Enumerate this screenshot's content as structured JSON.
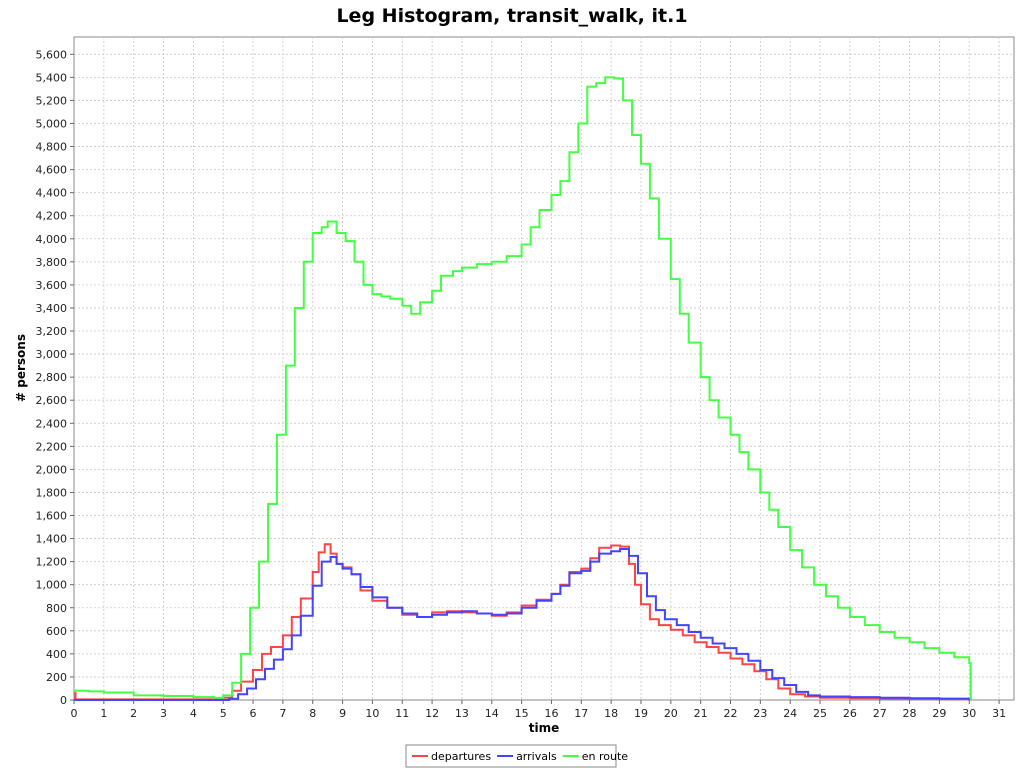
{
  "chart_data": {
    "type": "line",
    "step": true,
    "title": "Leg Histogram, transit_walk, it.1",
    "xlabel": "time",
    "ylabel": "# persons",
    "xlim": [
      0,
      31.5
    ],
    "ylim": [
      0,
      5750
    ],
    "x_ticks": [
      0,
      1,
      2,
      3,
      4,
      5,
      6,
      7,
      8,
      9,
      10,
      11,
      12,
      13,
      14,
      15,
      16,
      17,
      18,
      19,
      20,
      21,
      22,
      23,
      24,
      25,
      26,
      27,
      28,
      29,
      30,
      31
    ],
    "y_ticks": [
      0,
      200,
      400,
      600,
      800,
      1000,
      1200,
      1400,
      1600,
      1800,
      2000,
      2200,
      2400,
      2600,
      2800,
      3000,
      3200,
      3400,
      3600,
      3800,
      4000,
      4200,
      4400,
      4600,
      4800,
      5000,
      5200,
      5400,
      5600
    ],
    "y_tick_labels": [
      "0",
      "200",
      "400",
      "600",
      "800",
      "1,000",
      "1,200",
      "1,400",
      "1,600",
      "1,800",
      "2,000",
      "2,200",
      "2,400",
      "2,600",
      "2,800",
      "3,000",
      "3,200",
      "3,400",
      "3,600",
      "3,800",
      "4,000",
      "4,200",
      "4,400",
      "4,600",
      "4,800",
      "5,000",
      "5,200",
      "5,400",
      "5,600"
    ],
    "grid": true,
    "legend_position": "bottom",
    "series": [
      {
        "name": "departures",
        "color": "#ff4444",
        "points": [
          [
            0,
            60
          ],
          [
            0.05,
            5
          ],
          [
            1,
            5
          ],
          [
            2,
            5
          ],
          [
            3,
            5
          ],
          [
            4,
            5
          ],
          [
            4.8,
            10
          ],
          [
            5,
            20
          ],
          [
            5.3,
            80
          ],
          [
            5.6,
            160
          ],
          [
            6,
            260
          ],
          [
            6.3,
            400
          ],
          [
            6.6,
            460
          ],
          [
            7,
            560
          ],
          [
            7.3,
            720
          ],
          [
            7.6,
            880
          ],
          [
            8,
            1110
          ],
          [
            8.2,
            1280
          ],
          [
            8.4,
            1350
          ],
          [
            8.6,
            1270
          ],
          [
            8.8,
            1180
          ],
          [
            9,
            1150
          ],
          [
            9.3,
            1090
          ],
          [
            9.6,
            950
          ],
          [
            10,
            860
          ],
          [
            10.5,
            800
          ],
          [
            11,
            740
          ],
          [
            11.5,
            720
          ],
          [
            12,
            760
          ],
          [
            12.5,
            770
          ],
          [
            13,
            760
          ],
          [
            13.5,
            750
          ],
          [
            14,
            730
          ],
          [
            14.5,
            760
          ],
          [
            15,
            820
          ],
          [
            15.5,
            870
          ],
          [
            16,
            920
          ],
          [
            16.3,
            1000
          ],
          [
            16.6,
            1110
          ],
          [
            17,
            1140
          ],
          [
            17.3,
            1230
          ],
          [
            17.6,
            1320
          ],
          [
            18,
            1340
          ],
          [
            18.3,
            1330
          ],
          [
            18.6,
            1180
          ],
          [
            18.8,
            1000
          ],
          [
            19,
            830
          ],
          [
            19.3,
            700
          ],
          [
            19.6,
            650
          ],
          [
            20,
            610
          ],
          [
            20.4,
            560
          ],
          [
            20.8,
            500
          ],
          [
            21.2,
            460
          ],
          [
            21.6,
            410
          ],
          [
            22,
            360
          ],
          [
            22.4,
            310
          ],
          [
            22.8,
            250
          ],
          [
            23.2,
            180
          ],
          [
            23.6,
            100
          ],
          [
            24,
            50
          ],
          [
            24.5,
            30
          ],
          [
            25,
            20
          ],
          [
            26,
            15
          ],
          [
            27,
            12
          ],
          [
            28,
            10
          ],
          [
            29,
            8
          ],
          [
            30,
            5
          ],
          [
            30.05,
            0
          ]
        ]
      },
      {
        "name": "arrivals",
        "color": "#4444ff",
        "points": [
          [
            0,
            0
          ],
          [
            4.9,
            0
          ],
          [
            5.2,
            10
          ],
          [
            5.5,
            50
          ],
          [
            5.8,
            100
          ],
          [
            6.1,
            180
          ],
          [
            6.4,
            270
          ],
          [
            6.7,
            350
          ],
          [
            7,
            440
          ],
          [
            7.3,
            560
          ],
          [
            7.6,
            730
          ],
          [
            8,
            990
          ],
          [
            8.3,
            1200
          ],
          [
            8.6,
            1240
          ],
          [
            8.8,
            1180
          ],
          [
            9,
            1140
          ],
          [
            9.3,
            1090
          ],
          [
            9.6,
            980
          ],
          [
            10,
            890
          ],
          [
            10.5,
            800
          ],
          [
            11,
            750
          ],
          [
            11.5,
            720
          ],
          [
            12,
            740
          ],
          [
            12.5,
            760
          ],
          [
            13,
            770
          ],
          [
            13.5,
            750
          ],
          [
            14,
            740
          ],
          [
            14.5,
            750
          ],
          [
            15,
            800
          ],
          [
            15.5,
            860
          ],
          [
            16,
            920
          ],
          [
            16.3,
            990
          ],
          [
            16.6,
            1100
          ],
          [
            17,
            1120
          ],
          [
            17.3,
            1200
          ],
          [
            17.6,
            1270
          ],
          [
            18,
            1290
          ],
          [
            18.3,
            1310
          ],
          [
            18.6,
            1250
          ],
          [
            18.9,
            1100
          ],
          [
            19.2,
            900
          ],
          [
            19.5,
            780
          ],
          [
            19.8,
            700
          ],
          [
            20.2,
            650
          ],
          [
            20.6,
            590
          ],
          [
            21,
            540
          ],
          [
            21.4,
            490
          ],
          [
            21.8,
            450
          ],
          [
            22.2,
            400
          ],
          [
            22.6,
            340
          ],
          [
            23,
            260
          ],
          [
            23.4,
            190
          ],
          [
            23.8,
            130
          ],
          [
            24.2,
            70
          ],
          [
            24.6,
            40
          ],
          [
            25,
            30
          ],
          [
            26,
            25
          ],
          [
            27,
            20
          ],
          [
            28,
            15
          ],
          [
            29,
            12
          ],
          [
            30,
            5
          ],
          [
            30.05,
            0
          ]
        ]
      },
      {
        "name": "en route",
        "color": "#44ff44",
        "points": [
          [
            0,
            80
          ],
          [
            0.5,
            75
          ],
          [
            1,
            65
          ],
          [
            2,
            40
          ],
          [
            3,
            35
          ],
          [
            4,
            25
          ],
          [
            4.7,
            18
          ],
          [
            5,
            40
          ],
          [
            5.3,
            150
          ],
          [
            5.6,
            400
          ],
          [
            5.9,
            800
          ],
          [
            6.2,
            1200
          ],
          [
            6.5,
            1700
          ],
          [
            6.8,
            2300
          ],
          [
            7.1,
            2900
          ],
          [
            7.4,
            3400
          ],
          [
            7.7,
            3800
          ],
          [
            8,
            4050
          ],
          [
            8.3,
            4100
          ],
          [
            8.5,
            4150
          ],
          [
            8.8,
            4050
          ],
          [
            9.1,
            3980
          ],
          [
            9.4,
            3800
          ],
          [
            9.7,
            3600
          ],
          [
            10,
            3520
          ],
          [
            10.3,
            3500
          ],
          [
            10.6,
            3480
          ],
          [
            11,
            3420
          ],
          [
            11.3,
            3350
          ],
          [
            11.6,
            3450
          ],
          [
            12,
            3550
          ],
          [
            12.3,
            3680
          ],
          [
            12.7,
            3720
          ],
          [
            13,
            3750
          ],
          [
            13.5,
            3780
          ],
          [
            14,
            3800
          ],
          [
            14.5,
            3850
          ],
          [
            15,
            3950
          ],
          [
            15.3,
            4100
          ],
          [
            15.6,
            4250
          ],
          [
            16,
            4380
          ],
          [
            16.3,
            4500
          ],
          [
            16.6,
            4750
          ],
          [
            16.9,
            5000
          ],
          [
            17.2,
            5320
          ],
          [
            17.5,
            5350
          ],
          [
            17.8,
            5400
          ],
          [
            18.1,
            5390
          ],
          [
            18.4,
            5200
          ],
          [
            18.7,
            4900
          ],
          [
            19,
            4650
          ],
          [
            19.3,
            4350
          ],
          [
            19.6,
            4000
          ],
          [
            20,
            3650
          ],
          [
            20.3,
            3350
          ],
          [
            20.6,
            3100
          ],
          [
            21,
            2800
          ],
          [
            21.3,
            2600
          ],
          [
            21.6,
            2450
          ],
          [
            22,
            2300
          ],
          [
            22.3,
            2150
          ],
          [
            22.6,
            2000
          ],
          [
            23,
            1800
          ],
          [
            23.3,
            1650
          ],
          [
            23.6,
            1500
          ],
          [
            24,
            1300
          ],
          [
            24.4,
            1150
          ],
          [
            24.8,
            1000
          ],
          [
            25.2,
            900
          ],
          [
            25.6,
            800
          ],
          [
            26,
            720
          ],
          [
            26.5,
            650
          ],
          [
            27,
            590
          ],
          [
            27.5,
            540
          ],
          [
            28,
            500
          ],
          [
            28.5,
            450
          ],
          [
            29,
            410
          ],
          [
            29.5,
            370
          ],
          [
            30,
            320
          ],
          [
            30.05,
            0
          ]
        ]
      }
    ]
  }
}
